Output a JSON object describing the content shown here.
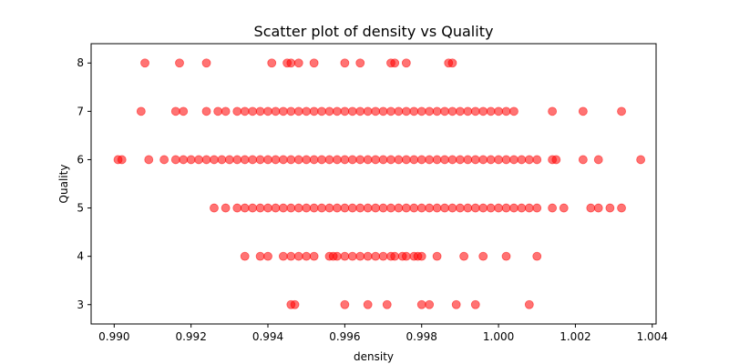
{
  "chart_data": {
    "type": "scatter",
    "title": "Scatter plot of density vs Quality",
    "xlabel": "density",
    "ylabel": "Quality",
    "xlim": [
      0.9894,
      1.0041
    ],
    "ylim": [
      2.6,
      8.4
    ],
    "xticks": [
      0.99,
      0.992,
      0.994,
      0.996,
      0.998,
      1.0,
      1.002,
      1.004
    ],
    "xtick_labels": [
      "0.990",
      "0.992",
      "0.994",
      "0.996",
      "0.998",
      "1.000",
      "1.002",
      "1.004"
    ],
    "yticks": [
      3,
      4,
      5,
      6,
      7,
      8
    ],
    "ytick_labels": [
      "3",
      "4",
      "5",
      "6",
      "7",
      "8"
    ],
    "grid": false,
    "color": "#ff0000",
    "alpha": 0.55,
    "series": [
      {
        "points": [
          [
            0.9946,
            3
          ],
          [
            0.9947,
            3
          ],
          [
            0.996,
            3
          ],
          [
            0.9966,
            3
          ],
          [
            0.9971,
            3
          ],
          [
            0.998,
            3
          ],
          [
            0.9982,
            3
          ],
          [
            0.9989,
            3
          ],
          [
            0.9994,
            3
          ],
          [
            1.0008,
            3
          ],
          [
            0.9934,
            4
          ],
          [
            0.9938,
            4
          ],
          [
            0.994,
            4
          ],
          [
            0.9944,
            4
          ],
          [
            0.9946,
            4
          ],
          [
            0.9948,
            4
          ],
          [
            0.995,
            4
          ],
          [
            0.9952,
            4
          ],
          [
            0.9956,
            4
          ],
          [
            0.9957,
            4
          ],
          [
            0.9958,
            4
          ],
          [
            0.996,
            4
          ],
          [
            0.9962,
            4
          ],
          [
            0.9964,
            4
          ],
          [
            0.9966,
            4
          ],
          [
            0.9968,
            4
          ],
          [
            0.997,
            4
          ],
          [
            0.9972,
            4
          ],
          [
            0.9973,
            4
          ],
          [
            0.9975,
            4
          ],
          [
            0.9976,
            4
          ],
          [
            0.9978,
            4
          ],
          [
            0.9979,
            4
          ],
          [
            0.998,
            4
          ],
          [
            0.9984,
            4
          ],
          [
            0.9991,
            4
          ],
          [
            0.9996,
            4
          ],
          [
            1.0002,
            4
          ],
          [
            1.001,
            4
          ],
          [
            0.9926,
            5
          ],
          [
            0.9929,
            5
          ],
          [
            0.9932,
            5
          ],
          [
            0.9934,
            5
          ],
          [
            0.9936,
            5
          ],
          [
            0.9938,
            5
          ],
          [
            0.994,
            5
          ],
          [
            0.9942,
            5
          ],
          [
            0.9944,
            5
          ],
          [
            0.9946,
            5
          ],
          [
            0.9948,
            5
          ],
          [
            0.995,
            5
          ],
          [
            0.9952,
            5
          ],
          [
            0.9954,
            5
          ],
          [
            0.9956,
            5
          ],
          [
            0.9958,
            5
          ],
          [
            0.996,
            5
          ],
          [
            0.9962,
            5
          ],
          [
            0.9964,
            5
          ],
          [
            0.9966,
            5
          ],
          [
            0.9968,
            5
          ],
          [
            0.997,
            5
          ],
          [
            0.9972,
            5
          ],
          [
            0.9974,
            5
          ],
          [
            0.9976,
            5
          ],
          [
            0.9978,
            5
          ],
          [
            0.998,
            5
          ],
          [
            0.9982,
            5
          ],
          [
            0.9984,
            5
          ],
          [
            0.9986,
            5
          ],
          [
            0.9988,
            5
          ],
          [
            0.999,
            5
          ],
          [
            0.9992,
            5
          ],
          [
            0.9994,
            5
          ],
          [
            0.9996,
            5
          ],
          [
            0.9998,
            5
          ],
          [
            1.0,
            5
          ],
          [
            1.0002,
            5
          ],
          [
            1.0004,
            5
          ],
          [
            1.0006,
            5
          ],
          [
            1.0008,
            5
          ],
          [
            1.001,
            5
          ],
          [
            1.0014,
            5
          ],
          [
            1.0017,
            5
          ],
          [
            1.0024,
            5
          ],
          [
            1.0026,
            5
          ],
          [
            1.0029,
            5
          ],
          [
            1.0032,
            5
          ],
          [
            0.9901,
            6
          ],
          [
            0.9902,
            6
          ],
          [
            0.9909,
            6
          ],
          [
            0.9913,
            6
          ],
          [
            0.9916,
            6
          ],
          [
            0.9918,
            6
          ],
          [
            0.992,
            6
          ],
          [
            0.9922,
            6
          ],
          [
            0.9924,
            6
          ],
          [
            0.9926,
            6
          ],
          [
            0.9928,
            6
          ],
          [
            0.993,
            6
          ],
          [
            0.9932,
            6
          ],
          [
            0.9934,
            6
          ],
          [
            0.9936,
            6
          ],
          [
            0.9938,
            6
          ],
          [
            0.994,
            6
          ],
          [
            0.9942,
            6
          ],
          [
            0.9944,
            6
          ],
          [
            0.9946,
            6
          ],
          [
            0.9948,
            6
          ],
          [
            0.995,
            6
          ],
          [
            0.9952,
            6
          ],
          [
            0.9954,
            6
          ],
          [
            0.9956,
            6
          ],
          [
            0.9958,
            6
          ],
          [
            0.996,
            6
          ],
          [
            0.9962,
            6
          ],
          [
            0.9964,
            6
          ],
          [
            0.9966,
            6
          ],
          [
            0.9968,
            6
          ],
          [
            0.997,
            6
          ],
          [
            0.9972,
            6
          ],
          [
            0.9974,
            6
          ],
          [
            0.9976,
            6
          ],
          [
            0.9978,
            6
          ],
          [
            0.998,
            6
          ],
          [
            0.9982,
            6
          ],
          [
            0.9984,
            6
          ],
          [
            0.9986,
            6
          ],
          [
            0.9988,
            6
          ],
          [
            0.999,
            6
          ],
          [
            0.9992,
            6
          ],
          [
            0.9994,
            6
          ],
          [
            0.9996,
            6
          ],
          [
            0.9998,
            6
          ],
          [
            1.0,
            6
          ],
          [
            1.0002,
            6
          ],
          [
            1.0004,
            6
          ],
          [
            1.0006,
            6
          ],
          [
            1.0008,
            6
          ],
          [
            1.001,
            6
          ],
          [
            1.0014,
            6
          ],
          [
            1.0015,
            6
          ],
          [
            1.0022,
            6
          ],
          [
            1.0026,
            6
          ],
          [
            1.0037,
            6
          ],
          [
            0.9907,
            7
          ],
          [
            0.9916,
            7
          ],
          [
            0.9918,
            7
          ],
          [
            0.9924,
            7
          ],
          [
            0.9927,
            7
          ],
          [
            0.9929,
            7
          ],
          [
            0.9932,
            7
          ],
          [
            0.9934,
            7
          ],
          [
            0.9936,
            7
          ],
          [
            0.9938,
            7
          ],
          [
            0.994,
            7
          ],
          [
            0.9942,
            7
          ],
          [
            0.9944,
            7
          ],
          [
            0.9946,
            7
          ],
          [
            0.9948,
            7
          ],
          [
            0.995,
            7
          ],
          [
            0.9952,
            7
          ],
          [
            0.9954,
            7
          ],
          [
            0.9956,
            7
          ],
          [
            0.9958,
            7
          ],
          [
            0.996,
            7
          ],
          [
            0.9962,
            7
          ],
          [
            0.9964,
            7
          ],
          [
            0.9966,
            7
          ],
          [
            0.9968,
            7
          ],
          [
            0.997,
            7
          ],
          [
            0.9972,
            7
          ],
          [
            0.9974,
            7
          ],
          [
            0.9976,
            7
          ],
          [
            0.9978,
            7
          ],
          [
            0.998,
            7
          ],
          [
            0.9982,
            7
          ],
          [
            0.9984,
            7
          ],
          [
            0.9986,
            7
          ],
          [
            0.9988,
            7
          ],
          [
            0.999,
            7
          ],
          [
            0.9992,
            7
          ],
          [
            0.9994,
            7
          ],
          [
            0.9996,
            7
          ],
          [
            0.9998,
            7
          ],
          [
            1.0,
            7
          ],
          [
            1.0002,
            7
          ],
          [
            1.0004,
            7
          ],
          [
            1.0014,
            7
          ],
          [
            1.0022,
            7
          ],
          [
            1.0032,
            7
          ],
          [
            0.9908,
            8
          ],
          [
            0.9917,
            8
          ],
          [
            0.9924,
            8
          ],
          [
            0.9941,
            8
          ],
          [
            0.9945,
            8
          ],
          [
            0.9946,
            8
          ],
          [
            0.9948,
            8
          ],
          [
            0.9952,
            8
          ],
          [
            0.996,
            8
          ],
          [
            0.9964,
            8
          ],
          [
            0.9972,
            8
          ],
          [
            0.9973,
            8
          ],
          [
            0.9976,
            8
          ],
          [
            0.9987,
            8
          ],
          [
            0.9988,
            8
          ]
        ]
      }
    ]
  }
}
